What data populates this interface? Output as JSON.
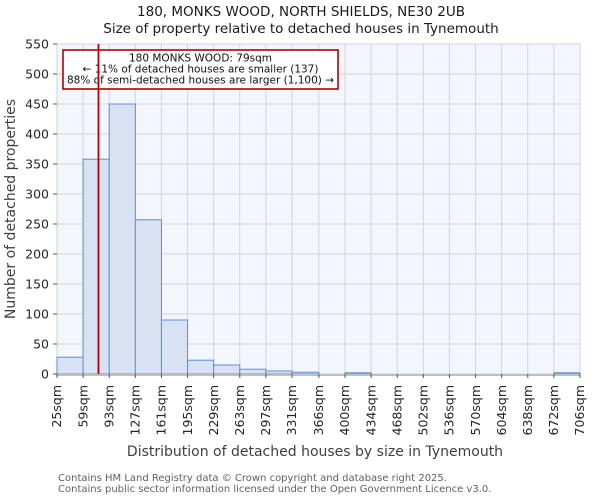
{
  "page": {
    "title_line1": "180, MONKS WOOD, NORTH SHIELDS, NE30 2UB",
    "title_line2": "Size of property relative to detached houses in Tynemouth"
  },
  "annotation": {
    "line1": "180 MONKS WOOD: 79sqm",
    "line2": "← 11% of detached houses are smaller (137)",
    "line3": "88% of semi-detached houses are larger (1,100) →"
  },
  "chart_data": {
    "type": "bar",
    "title": "180, MONKS WOOD, NORTH SHIELDS, NE30 2UB",
    "subtitle": "Size of property relative to detached houses in Tynemouth",
    "xlabel": "Distribution of detached houses by size in Tynemouth",
    "ylabel": "Number of detached properties",
    "bin_edges_sqm": [
      25,
      59,
      93,
      127,
      161,
      195,
      229,
      263,
      297,
      331,
      366,
      400,
      434,
      468,
      502,
      536,
      570,
      604,
      638,
      672,
      706
    ],
    "x_tick_labels": [
      "25sqm",
      "59sqm",
      "93sqm",
      "127sqm",
      "161sqm",
      "195sqm",
      "229sqm",
      "263sqm",
      "297sqm",
      "331sqm",
      "366sqm",
      "400sqm",
      "434sqm",
      "468sqm",
      "502sqm",
      "536sqm",
      "570sqm",
      "604sqm",
      "638sqm",
      "672sqm",
      "706sqm"
    ],
    "values": [
      28,
      358,
      450,
      257,
      90,
      23,
      15,
      8,
      5,
      3,
      0,
      2,
      0,
      0,
      0,
      0,
      0,
      0,
      0,
      2
    ],
    "ylim": [
      0,
      550
    ],
    "y_ticks": [
      0,
      50,
      100,
      150,
      200,
      250,
      300,
      350,
      400,
      450,
      500,
      550
    ],
    "grid": true,
    "legend": "none",
    "marker": {
      "value_sqm": 79,
      "label": "180 MONKS WOOD: 79sqm"
    }
  },
  "footer": {
    "line1": "Contains HM Land Registry data © Crown copyright and database right 2025.",
    "line2": "Contains public sector information licensed under the Open Government Licence v3.0."
  },
  "colors": {
    "bar_fill": "#d8e2f3",
    "bar_stroke": "#5b8fd4",
    "marker_red": "#b30000",
    "annotation_border": "#b30000",
    "annotation_bg": "#ffffff",
    "plot_bg": "#f3f6fc",
    "gridline": "#d4d4da",
    "bottom_spine": "#bfbfc4",
    "tick_mark": "#555555"
  }
}
